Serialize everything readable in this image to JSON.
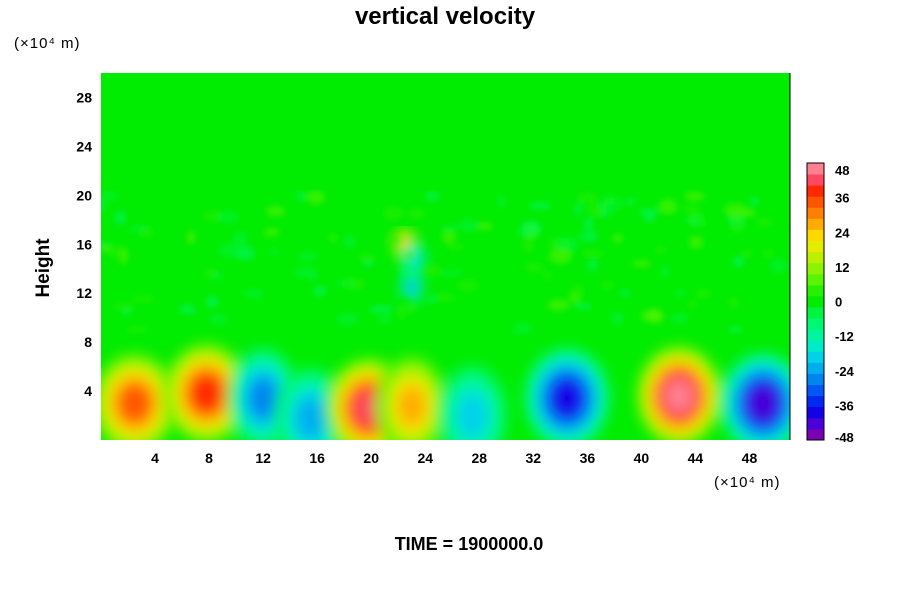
{
  "chart_data": {
    "type": "heatmap",
    "title": "vertical velocity",
    "ylabel": "Height",
    "y_unit_label": "(×10⁴ m)",
    "x_unit_label": "(×10⁴ m)",
    "footer": "TIME = 1900000.0",
    "xlim": [
      0,
      51
    ],
    "ylim": [
      0,
      30
    ],
    "x_ticks": [
      "4",
      "8",
      "12",
      "16",
      "20",
      "24",
      "28",
      "32",
      "36",
      "40",
      "44",
      "48"
    ],
    "x_tick_values": [
      4,
      8,
      12,
      16,
      20,
      24,
      28,
      32,
      36,
      40,
      44,
      48
    ],
    "y_ticks": [
      "4",
      "8",
      "12",
      "16",
      "20",
      "24",
      "28"
    ],
    "y_tick_values": [
      4,
      8,
      12,
      16,
      20,
      24,
      28
    ],
    "colorbar": {
      "min": -48,
      "max": 48,
      "step": 4,
      "labels": [
        "48",
        "36",
        "24",
        "12",
        "0",
        "-12",
        "-24",
        "-36",
        "-48"
      ],
      "label_values": [
        48,
        36,
        24,
        12,
        0,
        -12,
        -24,
        -36,
        -48
      ],
      "colors": [
        "#7a00b4",
        "#4a00d8",
        "#1400e6",
        "#0028f0",
        "#0058f4",
        "#0084f0",
        "#00aef0",
        "#00d2e8",
        "#00ecc8",
        "#00f69c",
        "#00f870",
        "#00f440",
        "#00ec00",
        "#28f000",
        "#5cf400",
        "#8cf400",
        "#bcf000",
        "#e4ec00",
        "#ffd800",
        "#ffac00",
        "#ff8000",
        "#ff5400",
        "#ff2800",
        "#ff4860",
        "#ff8090"
      ]
    },
    "features": [
      {
        "x": 2.5,
        "y": 3.0,
        "peak": 34
      },
      {
        "x": 7.8,
        "y": 3.8,
        "peak": 38
      },
      {
        "x": 12.0,
        "y": 3.4,
        "peak": -27
      },
      {
        "x": 15.5,
        "y": 1.8,
        "peak": -24
      },
      {
        "x": 19.8,
        "y": 2.6,
        "peak": 42
      },
      {
        "x": 23.0,
        "y": 2.8,
        "peak": 26
      },
      {
        "x": 27.5,
        "y": 2.0,
        "peak": -18
      },
      {
        "x": 34.5,
        "y": 3.4,
        "peak": -38
      },
      {
        "x": 42.8,
        "y": 3.6,
        "peak": 46
      },
      {
        "x": 49.0,
        "y": 3.0,
        "peak": -42
      },
      {
        "x": 22.5,
        "y": 16.0,
        "peak": 28
      },
      {
        "x": 23.2,
        "y": 14.8,
        "peak": -20
      },
      {
        "x": 23.0,
        "y": 12.5,
        "peak": -22
      }
    ]
  }
}
